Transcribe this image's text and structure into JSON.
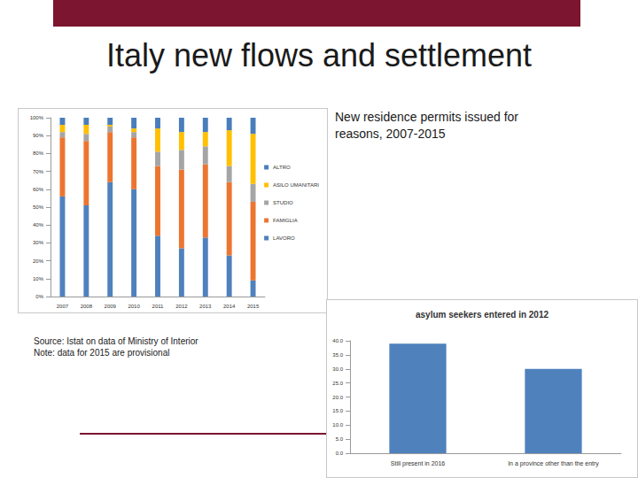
{
  "slide": {
    "title": "Italy new flows and settlement",
    "caption": "New residence permits issued for reasons, 2007-2015",
    "source": "Source: Istat on data of  Ministry of Interior",
    "note": "Note: data for 2015 are provisional"
  },
  "chart_data": [
    {
      "type": "bar",
      "stacked": true,
      "grid": false,
      "legend": "right",
      "categories": [
        "2007",
        "2008",
        "2009",
        "2010",
        "2011",
        "2012",
        "2013",
        "2014",
        "2015"
      ],
      "series": [
        {
          "name": "LAVORO",
          "color": "#4f81bd",
          "values": [
            56,
            51,
            64,
            60,
            34,
            27,
            33,
            23,
            9
          ]
        },
        {
          "name": "FAMIGLIA",
          "color": "#ec7530",
          "values": [
            33,
            36,
            28,
            29,
            39,
            44,
            41,
            41,
            44
          ]
        },
        {
          "name": "STUDIO",
          "color": "#a5a5a5",
          "values": [
            3,
            4,
            3,
            3,
            8,
            11,
            10,
            9,
            10
          ]
        },
        {
          "name": "ASILO UMANITARI",
          "color": "#ffc000",
          "values": [
            4,
            5,
            1,
            2,
            13,
            10,
            8,
            20,
            28
          ]
        },
        {
          "name": "ALTRO",
          "color": "#4a7ebb",
          "values": [
            4,
            4,
            4,
            6,
            6,
            8,
            8,
            7,
            9
          ]
        }
      ],
      "ylim": [
        0,
        100
      ],
      "yticks": [
        {
          "value": 0,
          "label": "0%"
        },
        {
          "value": 10,
          "label": "10%"
        },
        {
          "value": 20,
          "label": "20%"
        },
        {
          "value": 30,
          "label": "30%"
        },
        {
          "value": 40,
          "label": "40%"
        },
        {
          "value": 50,
          "label": "50%"
        },
        {
          "value": 60,
          "label": "60%"
        },
        {
          "value": 70,
          "label": "70%"
        },
        {
          "value": 80,
          "label": "80%"
        },
        {
          "value": 90,
          "label": "90%"
        },
        {
          "value": 100,
          "label": "100%"
        }
      ]
    },
    {
      "type": "bar",
      "title": "asylum seekers entered in 2012",
      "grid": false,
      "categories": [
        "Still present in 2016",
        "In a province other than the entry"
      ],
      "values": [
        39,
        30
      ],
      "color": "#4f81bd",
      "ylim": [
        0,
        40
      ],
      "yticks": [
        {
          "value": 0,
          "label": "0.0"
        },
        {
          "value": 5,
          "label": "5.0"
        },
        {
          "value": 10,
          "label": "10.0"
        },
        {
          "value": 15,
          "label": "15.0"
        },
        {
          "value": 20,
          "label": "20.0"
        },
        {
          "value": 25,
          "label": "25.0"
        },
        {
          "value": 30,
          "label": "30.0"
        },
        {
          "value": 35,
          "label": "35.0"
        },
        {
          "value": 40,
          "label": "40.0"
        }
      ]
    }
  ]
}
